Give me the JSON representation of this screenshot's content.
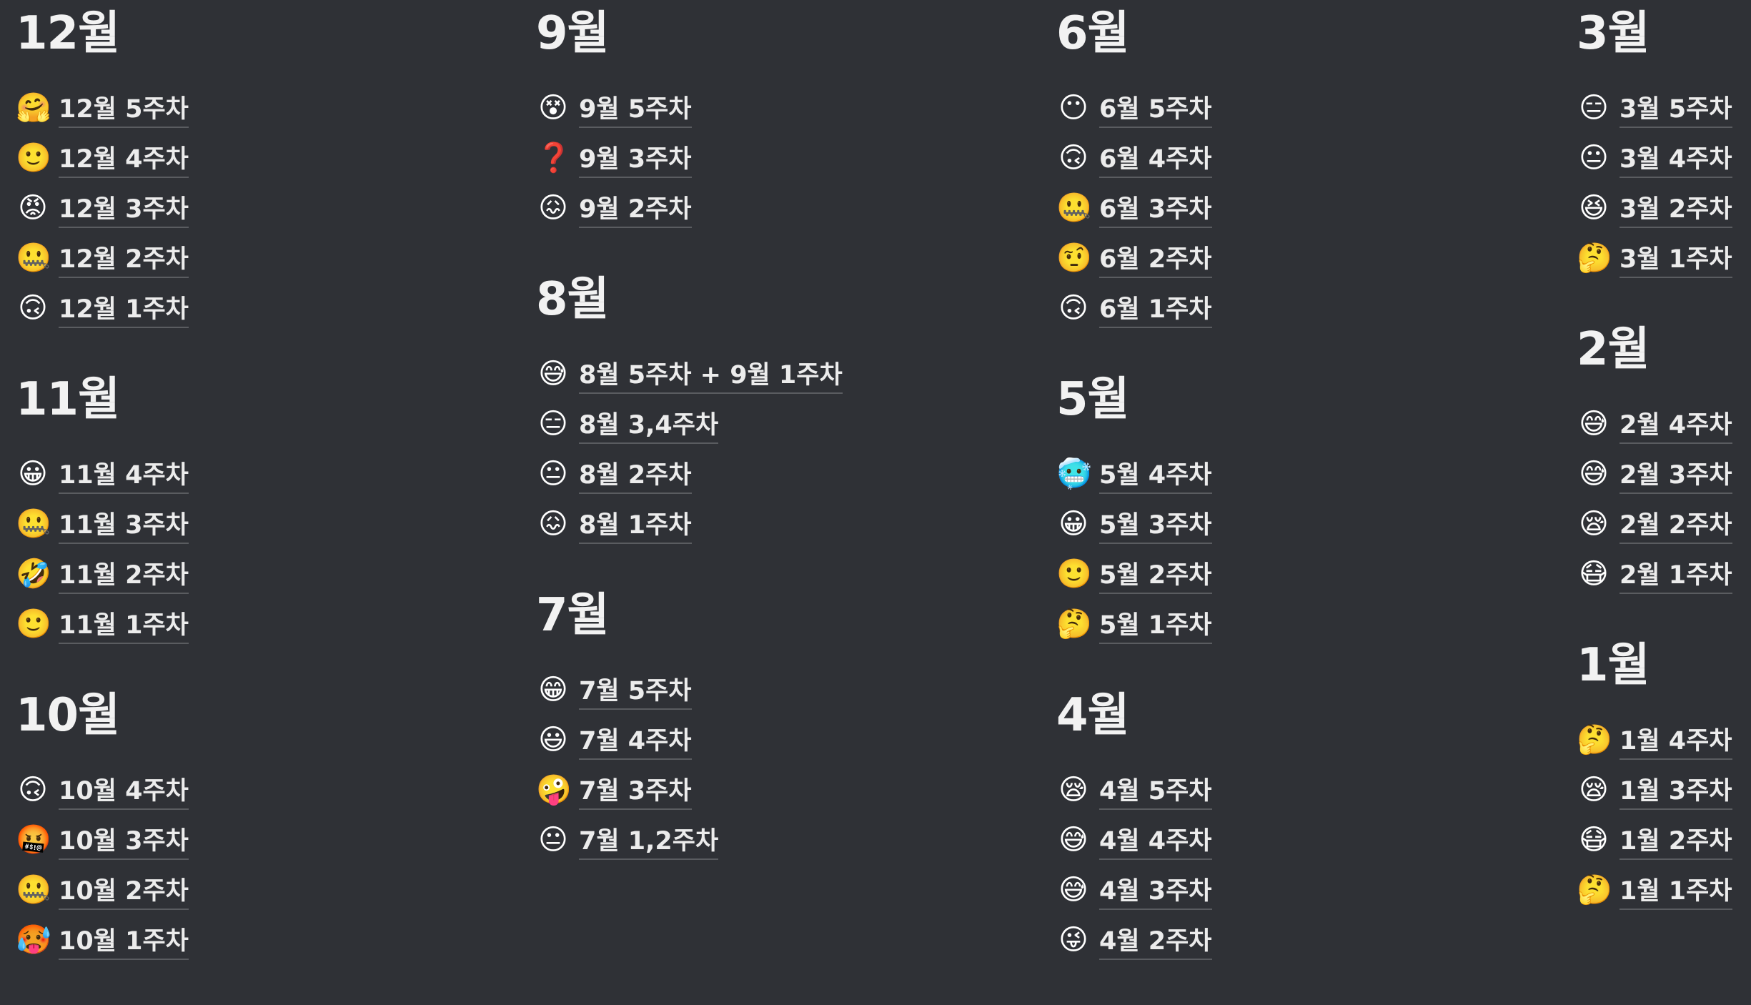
{
  "columns": [
    {
      "months": [
        {
          "title": "12월",
          "pages": [
            {
              "icon": "🤗",
              "icon_name": "hugging-face-icon",
              "label": "12월 5주차"
            },
            {
              "icon": "🙂",
              "icon_name": "slightly-smiling-face-icon",
              "label": "12월 4주차"
            },
            {
              "icon": "😡",
              "icon_name": "pouting-face-icon",
              "label": "12월 3주차"
            },
            {
              "icon": "🤐",
              "icon_name": "zipper-mouth-face-icon",
              "label": "12월 2주차"
            },
            {
              "icon": "🙃",
              "icon_name": "upside-down-face-icon",
              "label": "12월 1주차"
            }
          ]
        },
        {
          "title": "11월",
          "pages": [
            {
              "icon": "😀",
              "icon_name": "grinning-face-icon",
              "label": "11월 4주차"
            },
            {
              "icon": "🤐",
              "icon_name": "zipper-mouth-face-icon",
              "label": "11월 3주차"
            },
            {
              "icon": "🤣",
              "icon_name": "rolling-on-floor-laughing-icon",
              "label": "11월 2주차"
            },
            {
              "icon": "🙂",
              "icon_name": "slightly-smiling-face-icon",
              "label": "11월 1주차"
            }
          ]
        },
        {
          "title": "10월",
          "pages": [
            {
              "icon": "🙃",
              "icon_name": "upside-down-face-icon",
              "label": "10월 4주차"
            },
            {
              "icon": "🤬",
              "icon_name": "face-with-symbols-icon",
              "label": "10월 3주차"
            },
            {
              "icon": "🤐",
              "icon_name": "zipper-mouth-face-icon",
              "label": "10월 2주차"
            },
            {
              "icon": "🥵",
              "icon_name": "hot-face-icon",
              "label": "10월 1주차"
            }
          ]
        }
      ]
    },
    {
      "months": [
        {
          "title": "9월",
          "pages": [
            {
              "icon": "😵",
              "icon_name": "dizzy-face-icon",
              "label": "9월 5주차"
            },
            {
              "icon": "❓",
              "icon_name": "question-mark-icon",
              "label": "9월 3주차"
            },
            {
              "icon": "😖",
              "icon_name": "confounded-face-icon",
              "label": "9월 2주차"
            }
          ]
        },
        {
          "title": "8월",
          "pages": [
            {
              "icon": "😅",
              "icon_name": "grinning-sweat-face-icon",
              "label": "8월 5주차 + 9월 1주차"
            },
            {
              "icon": "😑",
              "icon_name": "expressionless-face-icon",
              "label": "8월 3,4주차"
            },
            {
              "icon": "😐",
              "icon_name": "neutral-face-icon",
              "label": "8월 2주차"
            },
            {
              "icon": "😖",
              "icon_name": "confounded-face-icon",
              "label": "8월 1주차"
            }
          ]
        },
        {
          "title": "7월",
          "pages": [
            {
              "icon": "😁",
              "icon_name": "beaming-face-icon",
              "label": "7월 5주차"
            },
            {
              "icon": "😃",
              "icon_name": "grinning-big-eyes-face-icon",
              "label": "7월 4주차"
            },
            {
              "icon": "🤪",
              "icon_name": "zany-face-icon",
              "label": "7월 3주차"
            },
            {
              "icon": "😐",
              "icon_name": "neutral-face-icon",
              "label": "7월 1,2주차"
            }
          ]
        }
      ]
    },
    {
      "months": [
        {
          "title": "6월",
          "pages": [
            {
              "icon": "😶",
              "icon_name": "face-without-mouth-icon",
              "label": "6월 5주차"
            },
            {
              "icon": "🙃",
              "icon_name": "upside-down-face-icon",
              "label": "6월 4주차"
            },
            {
              "icon": "🤐",
              "icon_name": "zipper-mouth-face-icon",
              "label": "6월 3주차"
            },
            {
              "icon": "🤨",
              "icon_name": "raised-eyebrow-face-icon",
              "label": "6월 2주차"
            },
            {
              "icon": "🙃",
              "icon_name": "upside-down-face-icon",
              "label": "6월 1주차"
            }
          ]
        },
        {
          "title": "5월",
          "pages": [
            {
              "icon": "🥶",
              "icon_name": "cold-face-icon",
              "label": "5월 4주차"
            },
            {
              "icon": "😀",
              "icon_name": "grinning-face-icon",
              "label": "5월 3주차"
            },
            {
              "icon": "🙂",
              "icon_name": "slightly-smiling-face-icon",
              "label": "5월 2주차"
            },
            {
              "icon": "🤔",
              "icon_name": "thinking-face-icon",
              "label": "5월 1주차"
            }
          ]
        },
        {
          "title": "4월",
          "pages": [
            {
              "icon": "😪",
              "icon_name": "sleepy-face-icon",
              "label": "4월 5주차"
            },
            {
              "icon": "😅",
              "icon_name": "grinning-sweat-face-icon",
              "label": "4월 4주차"
            },
            {
              "icon": "😅",
              "icon_name": "grinning-sweat-face-icon",
              "label": "4월 3주차"
            },
            {
              "icon": "😜",
              "icon_name": "winking-tongue-face-icon",
              "label": "4월 2주차"
            }
          ]
        }
      ]
    },
    {
      "months": [
        {
          "title": "3월",
          "pages": [
            {
              "icon": "😑",
              "icon_name": "expressionless-face-icon",
              "label": "3월 5주차"
            },
            {
              "icon": "😐",
              "icon_name": "neutral-face-icon",
              "label": "3월 4주차"
            },
            {
              "icon": "😆",
              "icon_name": "grinning-squinting-face-icon",
              "label": "3월 2주차"
            },
            {
              "icon": "🤔",
              "icon_name": "thinking-face-icon",
              "label": "3월 1주차"
            }
          ]
        },
        {
          "title": "2월",
          "pages": [
            {
              "icon": "😅",
              "icon_name": "grinning-sweat-face-icon",
              "label": "2월 4주차"
            },
            {
              "icon": "😅",
              "icon_name": "grinning-sweat-face-icon",
              "label": "2월 3주차"
            },
            {
              "icon": "😪",
              "icon_name": "sleepy-face-icon",
              "label": "2월 2주차"
            },
            {
              "icon": "😷",
              "icon_name": "face-with-mask-icon",
              "label": "2월 1주차"
            }
          ]
        },
        {
          "title": "1월",
          "pages": [
            {
              "icon": "🤔",
              "icon_name": "thinking-face-icon",
              "label": "1월 4주차"
            },
            {
              "icon": "😪",
              "icon_name": "sleepy-face-icon",
              "label": "1월 3주차"
            },
            {
              "icon": "😷",
              "icon_name": "face-with-mask-icon",
              "label": "1월 2주차"
            },
            {
              "icon": "🤔",
              "icon_name": "thinking-face-icon",
              "label": "1월 1주차"
            }
          ]
        }
      ]
    }
  ]
}
